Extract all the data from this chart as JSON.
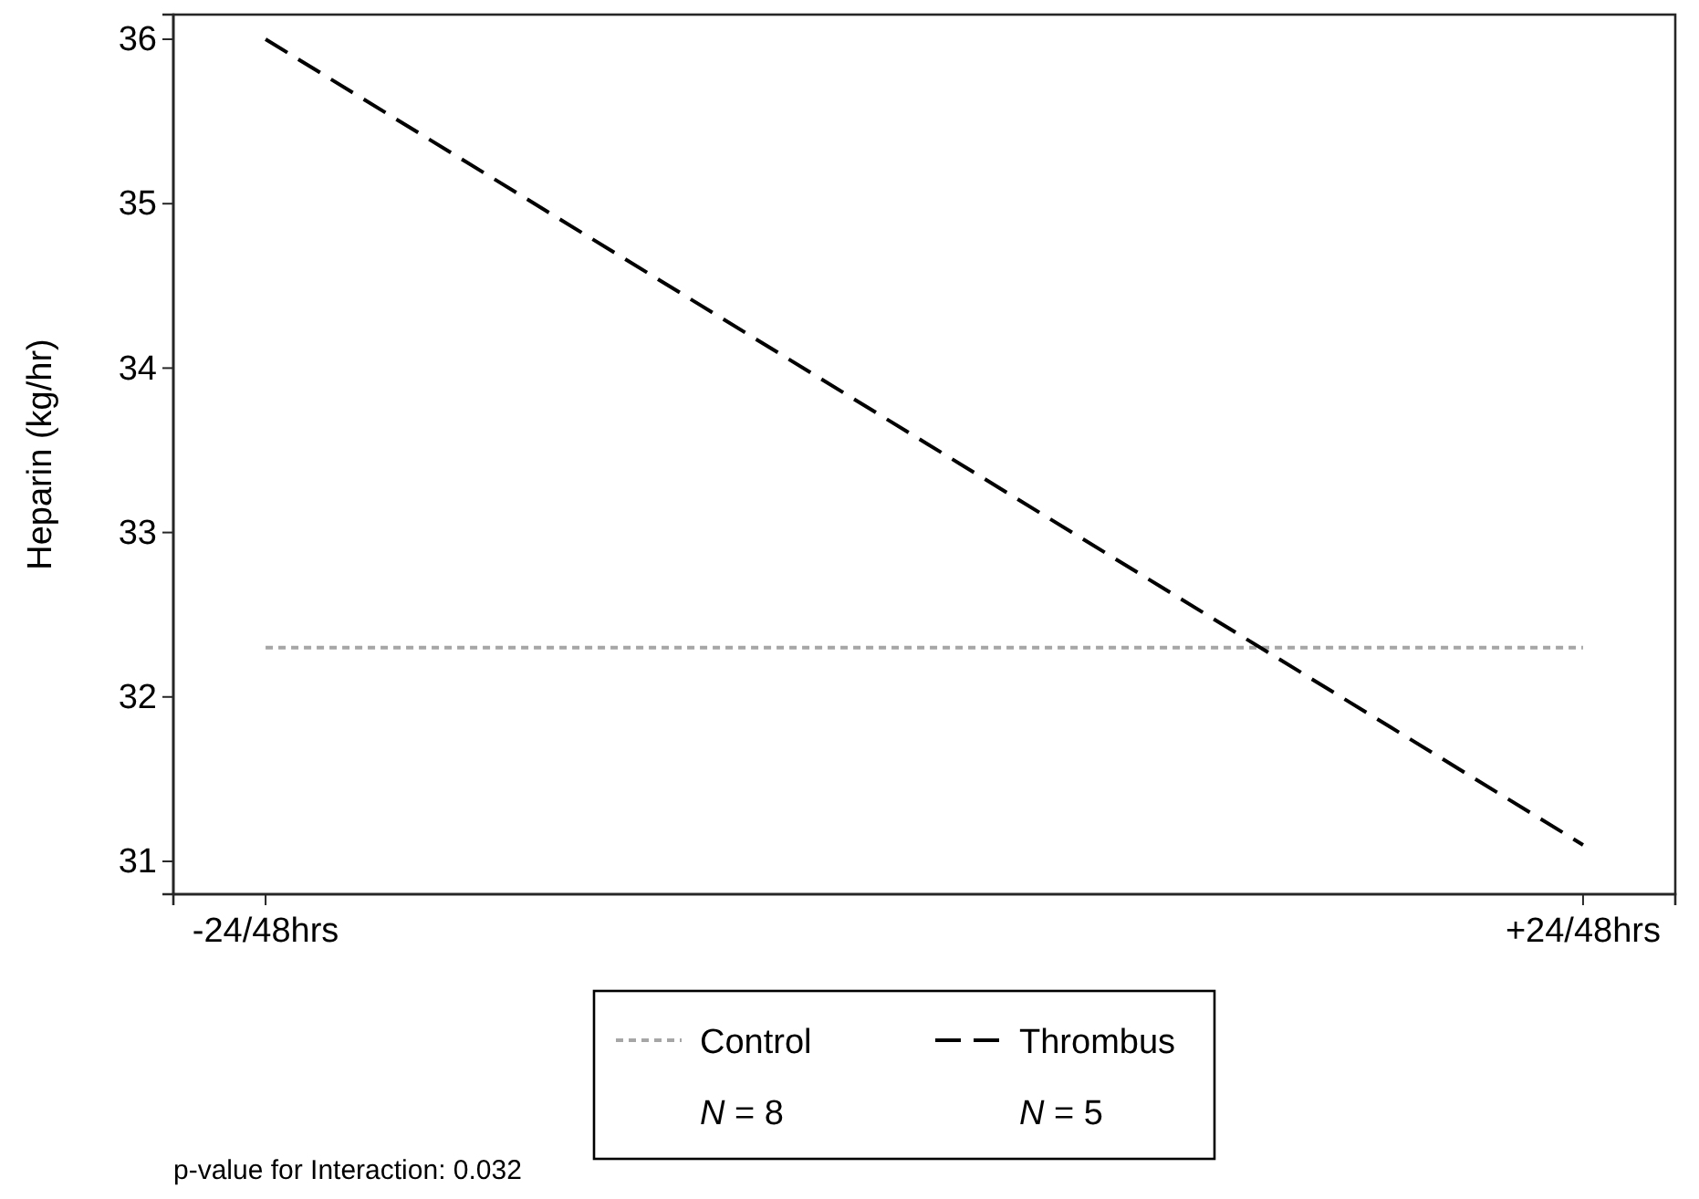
{
  "chart_data": {
    "type": "line",
    "ylabel": "Heparin (kg/hr)",
    "categories": [
      "-24/48hrs",
      "+24/48hrs"
    ],
    "series": [
      {
        "name": "Control",
        "color": "#a6a6a6",
        "line_style": "dotted",
        "values": [
          32.3,
          32.3
        ]
      },
      {
        "name": "Thrombus",
        "color": "#000000",
        "line_style": "dashed",
        "values": [
          36.0,
          31.1
        ]
      }
    ],
    "ylim": [
      30.8,
      36.15
    ],
    "yticks": [
      31,
      32,
      33,
      34,
      35,
      36
    ],
    "grid": false,
    "legend": "bottom",
    "marker": "none",
    "annotations": [
      "N = 8",
      "N = 5",
      "p-value for Interaction: 0.032"
    ]
  }
}
